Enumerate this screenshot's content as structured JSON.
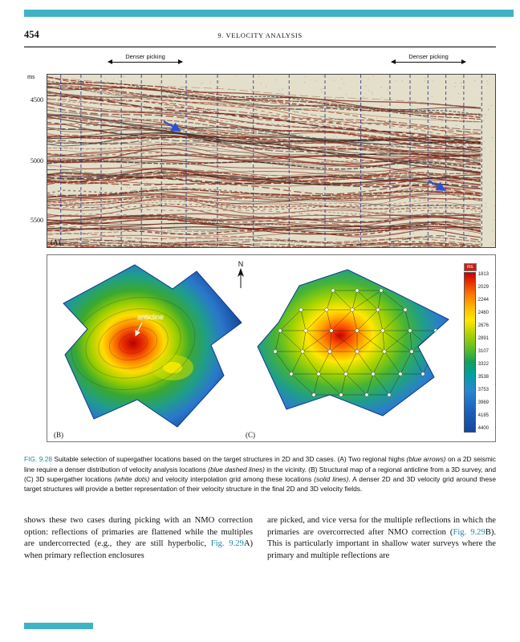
{
  "page": {
    "number": "454",
    "running_head": "9. VELOCITY ANALYSIS"
  },
  "figure": {
    "panelA": {
      "denser_picking_left": "Denser picking",
      "denser_picking_right": "Denser picking",
      "y_axis_unit": "ms",
      "y_ticks": [
        "4500",
        "5000",
        "5500"
      ],
      "label": "(A)"
    },
    "panelB": {
      "label": "(B)",
      "annotation": "anticline",
      "north_label": "N"
    },
    "panelC": {
      "label": "(C)"
    },
    "colorbar": {
      "unit": "ms",
      "ticks": [
        "1813",
        "2029",
        "2244",
        "2460",
        "2676",
        "2891",
        "3107",
        "3322",
        "3538",
        "3753",
        "3969",
        "4185",
        "4400"
      ]
    }
  },
  "caption": {
    "fig_label": "FIG. 9.28",
    "s1": " Suitable selection of supergather locations based on the target structures in 2D and 3D cases. (A) Two regional highs ",
    "i1": "(blue arrows)",
    "s2": " on a 2D seismic line require a denser distribution of velocity analysis locations ",
    "i2": "(blue dashed lines)",
    "s3": " in the vicinity. (B) Structural map of a regional anticline from a 3D survey, and (C) 3D supergather locations ",
    "i3": "(white dots)",
    "s4": " and velocity interpolation grid among these locations ",
    "i4": "(solid lines)",
    "s5": ". A denser 2D and 3D velocity grid around these target structures will provide a better representation of their velocity structure in the final 2D and 3D velocity fields."
  },
  "body": {
    "left": {
      "t1": "shows these two cases during picking with an NMO correction option: reflections of primaries are flattened while the multiples are undercorrected (e.g., they are still hyperbolic, ",
      "link": "Fig. 9.29",
      "t2": "A) when primary reflection enclosures"
    },
    "right": {
      "t1": "are picked, and vice versa for the multiple reflections in which the primaries are overcorrected after NMO correction (",
      "link": "Fig. 9.29",
      "t2": "B). This is particularly important in shallow water surveys where the primary and multiple reflections are"
    }
  },
  "colors": {
    "accent_teal": "#3eb3c3",
    "link_teal": "#2187a8",
    "seismic_bg": "#e4dfca",
    "seismic_red": "#7a2113",
    "pick_line_blue": "#27348f",
    "arrow_blue": "#2b4fd7"
  }
}
